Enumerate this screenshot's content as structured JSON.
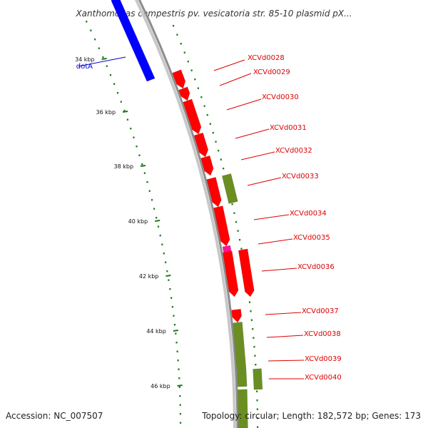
{
  "title": "Xanthomonas campestris pv. vesicatoria str. 85-10 plasmid pX...",
  "footer": {
    "accession": "Accession: NC_007507",
    "summary": "Topology: circular; Length: 182,572 bp; Genes: 173"
  },
  "colors": {
    "backbone": "#8c8c8c",
    "tick": "#1e7a1e",
    "cds_red": "#ff0000",
    "cds_green": "#6b8e23",
    "cds_pink": "#ff1493",
    "cds_blue": "#0000ff",
    "label_red": "#dd0000",
    "label_blue": "#0000cc"
  },
  "scale": {
    "ticks": [
      {
        "label": "34 kbp"
      },
      {
        "label": "36 kbp"
      },
      {
        "label": "38 kbp"
      },
      {
        "label": "40 kbp"
      },
      {
        "label": "42 kbp"
      },
      {
        "label": "44 kbp"
      },
      {
        "label": "46 kbp"
      }
    ]
  },
  "features": [
    {
      "name": "dotA",
      "color": "cds_blue",
      "label_color": "label_blue"
    },
    {
      "name": "XCVd0028",
      "color": "cds_red",
      "label_color": "label_red"
    },
    {
      "name": "XCVd0029",
      "color": "cds_red",
      "label_color": "label_red"
    },
    {
      "name": "XCVd0030",
      "color": "cds_red",
      "label_color": "label_red"
    },
    {
      "name": "XCVd0031",
      "color": "cds_red",
      "label_color": "label_red"
    },
    {
      "name": "XCVd0032",
      "color": "cds_red",
      "label_color": "label_red"
    },
    {
      "name": "XCVd0033",
      "color": "cds_green",
      "label_color": "label_red"
    },
    {
      "name": "XCVd0034",
      "color": "cds_red",
      "label_color": "label_red"
    },
    {
      "name": "XCVd0035",
      "color": "cds_red",
      "label_color": "label_red"
    },
    {
      "name": "XCVd0036",
      "color": "cds_pink",
      "label_color": "label_red"
    },
    {
      "name": "XCVd0037",
      "color": "cds_red",
      "label_color": "label_red"
    },
    {
      "name": "XCVd0038",
      "color": "cds_red",
      "label_color": "label_red"
    },
    {
      "name": "XCVd0039",
      "color": "cds_red",
      "label_color": "label_red"
    },
    {
      "name": "XCVd0040",
      "color": "cds_green",
      "label_color": "label_red"
    }
  ]
}
